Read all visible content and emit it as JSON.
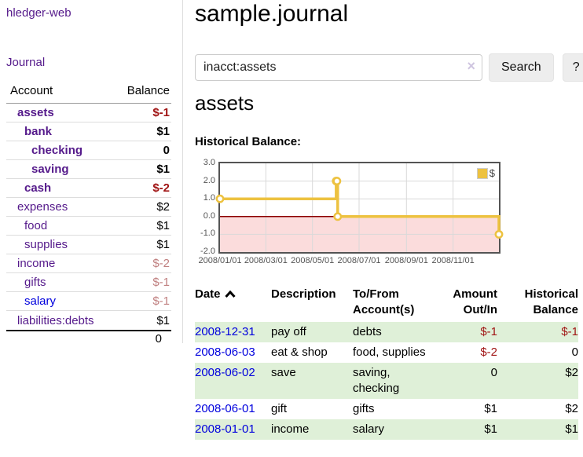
{
  "brand": "hledger-web",
  "nav": {
    "journal": "Journal"
  },
  "sidebar_accounts": {
    "col_account": "Account",
    "col_balance": "Balance",
    "rows": [
      {
        "account": "assets",
        "indent": 1,
        "bold": true,
        "color": "purple",
        "balance": "$-1",
        "balance_style": "neg"
      },
      {
        "account": "bank",
        "indent": 2,
        "bold": true,
        "color": "purple",
        "balance": "$1",
        "balance_style": "plain"
      },
      {
        "account": "checking",
        "indent": 3,
        "bold": true,
        "color": "purple",
        "balance": "0",
        "balance_style": "plain"
      },
      {
        "account": "saving",
        "indent": 3,
        "bold": true,
        "color": "purple",
        "balance": "$1",
        "balance_style": "plain"
      },
      {
        "account": "cash",
        "indent": 2,
        "bold": true,
        "color": "purple",
        "balance": "$-2",
        "balance_style": "neg"
      },
      {
        "account": "expenses",
        "indent": 1,
        "bold": false,
        "color": "purple",
        "balance": "$2",
        "balance_style": "plain"
      },
      {
        "account": "food",
        "indent": 2,
        "bold": false,
        "color": "purple",
        "balance": "$1",
        "balance_style": "plain"
      },
      {
        "account": "supplies",
        "indent": 2,
        "bold": false,
        "color": "purple",
        "balance": "$1",
        "balance_style": "plain"
      },
      {
        "account": "income",
        "indent": 1,
        "bold": false,
        "color": "purple",
        "balance": "$-2",
        "balance_style": "neg-light"
      },
      {
        "account": "gifts",
        "indent": 2,
        "bold": false,
        "color": "purple",
        "balance": "$-1",
        "balance_style": "neg-light"
      },
      {
        "account": "salary",
        "indent": 2,
        "bold": false,
        "color": "blue",
        "balance": "$-1",
        "balance_style": "neg-light"
      },
      {
        "account": "liabilities:debts",
        "indent": 1,
        "bold": false,
        "color": "purple",
        "balance": "$1",
        "balance_style": "plain"
      }
    ],
    "total": "0"
  },
  "header": {
    "title": "sample.journal"
  },
  "search": {
    "value": "inacct:assets",
    "clear_icon": "×",
    "search_button": "Search",
    "help_button": "?"
  },
  "account_page": {
    "heading": "assets",
    "chart_title": "Historical Balance:"
  },
  "chart_data": {
    "type": "line",
    "style": "step",
    "title": "Historical Balance",
    "series": [
      {
        "name": "$",
        "points": [
          [
            "2008-01-01",
            1
          ],
          [
            "2008-06-01",
            2
          ],
          [
            "2008-06-02",
            2
          ],
          [
            "2008-06-03",
            0
          ],
          [
            "2008-12-31",
            -1
          ]
        ]
      }
    ],
    "x_range": [
      "2008-01-01",
      "2008-12-31"
    ],
    "y_range": [
      -2,
      3
    ],
    "y_ticks": [
      "3.0",
      "2.0",
      "1.0",
      "0.0",
      "-1.0",
      "-2.0"
    ],
    "x_ticks": [
      "2008/01/01",
      "2008/03/01",
      "2008/05/01",
      "2008/07/01",
      "2008/09/01",
      "2008/11/01"
    ],
    "grid_x_dates": [
      "2008-03-01",
      "2008-05-01",
      "2008-07-01",
      "2008-09-01",
      "2008-11-01"
    ],
    "legend": {
      "label": "$",
      "position": "top-right"
    },
    "line_color": "#edc240",
    "negative_region_color": "#fbdcdc",
    "zero_line_color": "#8b0000"
  },
  "register": {
    "headers": {
      "date": "Date",
      "description": "Description",
      "to_from": "To/From\nAccount(s)",
      "amount": "Amount\nOut/In",
      "balance": "Historical\nBalance"
    },
    "rows": [
      {
        "date": "2008-12-31",
        "description": "pay off",
        "to_from": "debts",
        "amount": "$-1",
        "amount_style": "neg",
        "balance": "$-1",
        "balance_style": "neg"
      },
      {
        "date": "2008-06-03",
        "description": "eat & shop",
        "to_from": "food, supplies",
        "amount": "$-2",
        "amount_style": "neg",
        "balance": "0",
        "balance_style": "plain"
      },
      {
        "date": "2008-06-02",
        "description": "save",
        "to_from": "saving,\nchecking",
        "amount": "0",
        "amount_style": "plain",
        "balance": "$2",
        "balance_style": "plain"
      },
      {
        "date": "2008-06-01",
        "description": "gift",
        "to_from": "gifts",
        "amount": "$1",
        "amount_style": "plain",
        "balance": "$2",
        "balance_style": "plain"
      },
      {
        "date": "2008-01-01",
        "description": "income",
        "to_from": "salary",
        "amount": "$1",
        "amount_style": "plain",
        "balance": "$1",
        "balance_style": "plain"
      }
    ]
  },
  "colors": {
    "link_purple": "#551a8b",
    "link_blue": "#0000dd",
    "negative_strong": "#a01414",
    "negative_light": "#c08080",
    "row_stripe_green": "#dff0d8",
    "accent_yellow": "#edc240"
  }
}
